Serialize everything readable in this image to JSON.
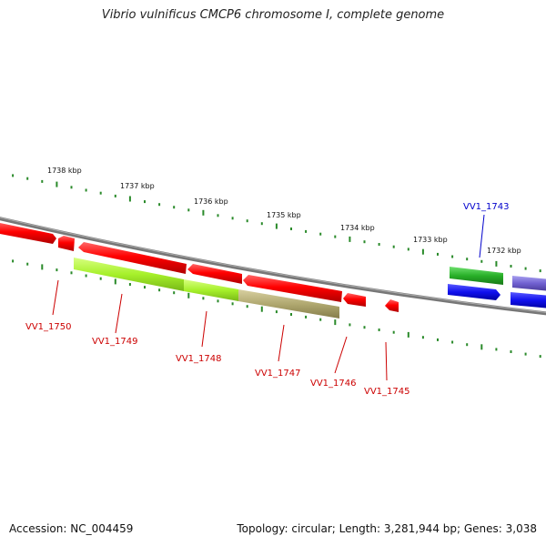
{
  "title": "Vibrio vulnificus CMCP6 chromosome I, complete genome",
  "accession": "Accession: NC_004459",
  "summary": "Topology: circular; Length: 3,281,944 bp; Genes: 3,038",
  "scale_labels": [
    "1738 kbp",
    "1737 kbp",
    "1736 kbp",
    "1735 kbp",
    "1734 kbp",
    "1733 kbp",
    "1732 kbp"
  ],
  "gene_labels": [
    {
      "text": "VV1_1750",
      "strand": "minus"
    },
    {
      "text": "VV1_1749",
      "strand": "minus"
    },
    {
      "text": "VV1_1748",
      "strand": "minus"
    },
    {
      "text": "VV1_1747",
      "strand": "minus"
    },
    {
      "text": "VV1_1746",
      "strand": "minus"
    },
    {
      "text": "VV1_1745",
      "strand": "minus"
    },
    {
      "text": "VV1_1743",
      "strand": "plus"
    }
  ],
  "colors": {
    "backbone": "#777777",
    "ticks": "#2a8a2a",
    "gene_minus": "#ff0000",
    "gene_plus": "#2a9a2a",
    "cds_light": "#a6f02a",
    "cds_olive": "#b0a870",
    "cds_blue": "#1010ee",
    "cds_purple": "#7060d0",
    "label_minus": "#cc0000",
    "label_plus": "#0000cc"
  }
}
